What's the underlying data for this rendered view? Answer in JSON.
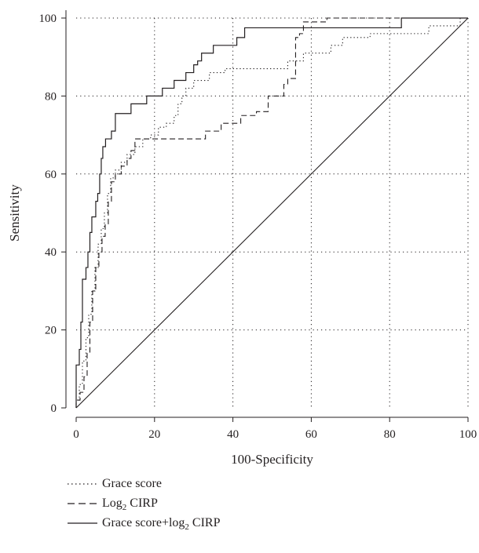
{
  "chart_data": {
    "type": "line",
    "xlabel": "100-Specificity",
    "ylabel": "Sensitivity",
    "xlim": [
      0,
      100
    ],
    "ylim": [
      0,
      100
    ],
    "xticks": [
      0,
      20,
      40,
      60,
      80,
      100
    ],
    "yticks": [
      0,
      20,
      40,
      60,
      80,
      100
    ],
    "grid": true,
    "legend_position": "bottom-left",
    "diagonal_reference": [
      [
        0,
        0
      ],
      [
        100,
        100
      ]
    ],
    "series": [
      {
        "name": "Grace score",
        "style": "dotted",
        "points": [
          [
            0,
            0
          ],
          [
            0,
            2
          ],
          [
            0.8,
            2
          ],
          [
            0.8,
            6
          ],
          [
            1.6,
            6
          ],
          [
            1.6,
            12
          ],
          [
            2.5,
            12
          ],
          [
            2.5,
            18
          ],
          [
            3.2,
            18
          ],
          [
            3.2,
            24
          ],
          [
            4,
            24
          ],
          [
            4,
            30
          ],
          [
            4.8,
            30
          ],
          [
            4.8,
            36
          ],
          [
            5.6,
            36
          ],
          [
            5.6,
            42
          ],
          [
            6.4,
            42
          ],
          [
            6.4,
            46
          ],
          [
            7.2,
            46
          ],
          [
            7.2,
            50
          ],
          [
            8,
            50
          ],
          [
            8,
            55
          ],
          [
            8.8,
            55
          ],
          [
            8.8,
            59
          ],
          [
            10,
            59
          ],
          [
            10,
            61
          ],
          [
            11.5,
            61
          ],
          [
            11.5,
            63
          ],
          [
            13,
            63
          ],
          [
            13,
            65
          ],
          [
            15,
            65
          ],
          [
            15,
            67
          ],
          [
            17,
            67
          ],
          [
            17,
            69
          ],
          [
            19,
            69
          ],
          [
            19,
            70
          ],
          [
            21,
            70
          ],
          [
            21,
            72
          ],
          [
            23,
            72
          ],
          [
            23,
            73
          ],
          [
            25,
            73
          ],
          [
            25,
            75
          ],
          [
            26,
            75
          ],
          [
            26,
            78
          ],
          [
            27,
            78
          ],
          [
            27,
            80
          ],
          [
            28,
            80
          ],
          [
            28,
            82
          ],
          [
            30,
            82
          ],
          [
            30,
            84
          ],
          [
            34,
            84
          ],
          [
            34,
            86
          ],
          [
            38,
            86
          ],
          [
            38,
            87
          ],
          [
            54,
            87
          ],
          [
            54,
            89
          ],
          [
            58,
            89
          ],
          [
            58,
            91
          ],
          [
            65,
            91
          ],
          [
            65,
            93
          ],
          [
            68,
            93
          ],
          [
            68,
            95
          ],
          [
            75,
            95
          ],
          [
            75,
            96
          ],
          [
            90,
            96
          ],
          [
            90,
            98
          ],
          [
            98,
            98
          ],
          [
            98,
            100
          ],
          [
            100,
            100
          ]
        ]
      },
      {
        "name": "Log₂ CIRP",
        "style": "dashed",
        "points": [
          [
            0,
            0
          ],
          [
            0,
            2
          ],
          [
            1,
            2
          ],
          [
            1,
            4
          ],
          [
            2,
            4
          ],
          [
            2,
            8
          ],
          [
            2.8,
            8
          ],
          [
            2.8,
            14
          ],
          [
            3.5,
            14
          ],
          [
            3.5,
            22
          ],
          [
            4.2,
            22
          ],
          [
            4.2,
            30
          ],
          [
            5,
            30
          ],
          [
            5,
            36
          ],
          [
            5.8,
            36
          ],
          [
            5.8,
            40
          ],
          [
            6.6,
            40
          ],
          [
            6.6,
            44
          ],
          [
            7.4,
            44
          ],
          [
            7.4,
            47
          ],
          [
            8.2,
            47
          ],
          [
            8.2,
            53
          ],
          [
            9,
            53
          ],
          [
            9,
            58
          ],
          [
            10,
            58
          ],
          [
            10,
            60
          ],
          [
            11.5,
            60
          ],
          [
            11.5,
            62
          ],
          [
            13,
            62
          ],
          [
            13,
            64
          ],
          [
            14,
            64
          ],
          [
            14,
            66
          ],
          [
            15,
            66
          ],
          [
            15,
            69
          ],
          [
            33,
            69
          ],
          [
            33,
            71
          ],
          [
            37,
            71
          ],
          [
            37,
            73
          ],
          [
            42,
            73
          ],
          [
            42,
            75
          ],
          [
            46,
            75
          ],
          [
            46,
            76
          ],
          [
            49,
            76
          ],
          [
            49,
            80
          ],
          [
            53,
            80
          ],
          [
            53,
            83
          ],
          [
            54,
            83
          ],
          [
            54,
            84.5
          ],
          [
            56,
            84.5
          ],
          [
            56,
            95
          ],
          [
            57,
            95
          ],
          [
            57,
            96
          ],
          [
            58,
            96
          ],
          [
            58,
            99
          ],
          [
            64,
            99
          ],
          [
            64,
            100
          ],
          [
            100,
            100
          ]
        ]
      },
      {
        "name": "Grace score+log₂ CIRP",
        "style": "solid",
        "points": [
          [
            0,
            0
          ],
          [
            0,
            11
          ],
          [
            0.8,
            11
          ],
          [
            0.8,
            15
          ],
          [
            1.2,
            15
          ],
          [
            1.2,
            22
          ],
          [
            1.6,
            22
          ],
          [
            1.6,
            33
          ],
          [
            2.5,
            33
          ],
          [
            2.5,
            36
          ],
          [
            3,
            36
          ],
          [
            3,
            40
          ],
          [
            3.5,
            40
          ],
          [
            3.5,
            45
          ],
          [
            4,
            45
          ],
          [
            4,
            49
          ],
          [
            5,
            49
          ],
          [
            5,
            53
          ],
          [
            5.5,
            53
          ],
          [
            5.5,
            55
          ],
          [
            6,
            55
          ],
          [
            6,
            60
          ],
          [
            6.4,
            60
          ],
          [
            6.4,
            64
          ],
          [
            6.8,
            64
          ],
          [
            6.8,
            67
          ],
          [
            7.5,
            67
          ],
          [
            7.5,
            69
          ],
          [
            9,
            69
          ],
          [
            9,
            71
          ],
          [
            10,
            71
          ],
          [
            10,
            75.5
          ],
          [
            14,
            75.5
          ],
          [
            14,
            78
          ],
          [
            18,
            78
          ],
          [
            18,
            80
          ],
          [
            22,
            80
          ],
          [
            22,
            82
          ],
          [
            25,
            82
          ],
          [
            25,
            84
          ],
          [
            28,
            84
          ],
          [
            28,
            86
          ],
          [
            30,
            86
          ],
          [
            30,
            88
          ],
          [
            31,
            88
          ],
          [
            31,
            89
          ],
          [
            32,
            89
          ],
          [
            32,
            91
          ],
          [
            35,
            91
          ],
          [
            35,
            93
          ],
          [
            41,
            93
          ],
          [
            41,
            95
          ],
          [
            43,
            95
          ],
          [
            43,
            97.5
          ],
          [
            83,
            97.5
          ],
          [
            83,
            100
          ],
          [
            100,
            100
          ]
        ]
      }
    ]
  },
  "legend": {
    "items": [
      {
        "prefix": "Grace score",
        "sub": "",
        "suffix": ""
      },
      {
        "prefix": "Log",
        "sub": "2",
        "suffix": " CIRP"
      },
      {
        "prefix": "Grace score+log",
        "sub": "2",
        "suffix": " CIRP"
      }
    ]
  }
}
